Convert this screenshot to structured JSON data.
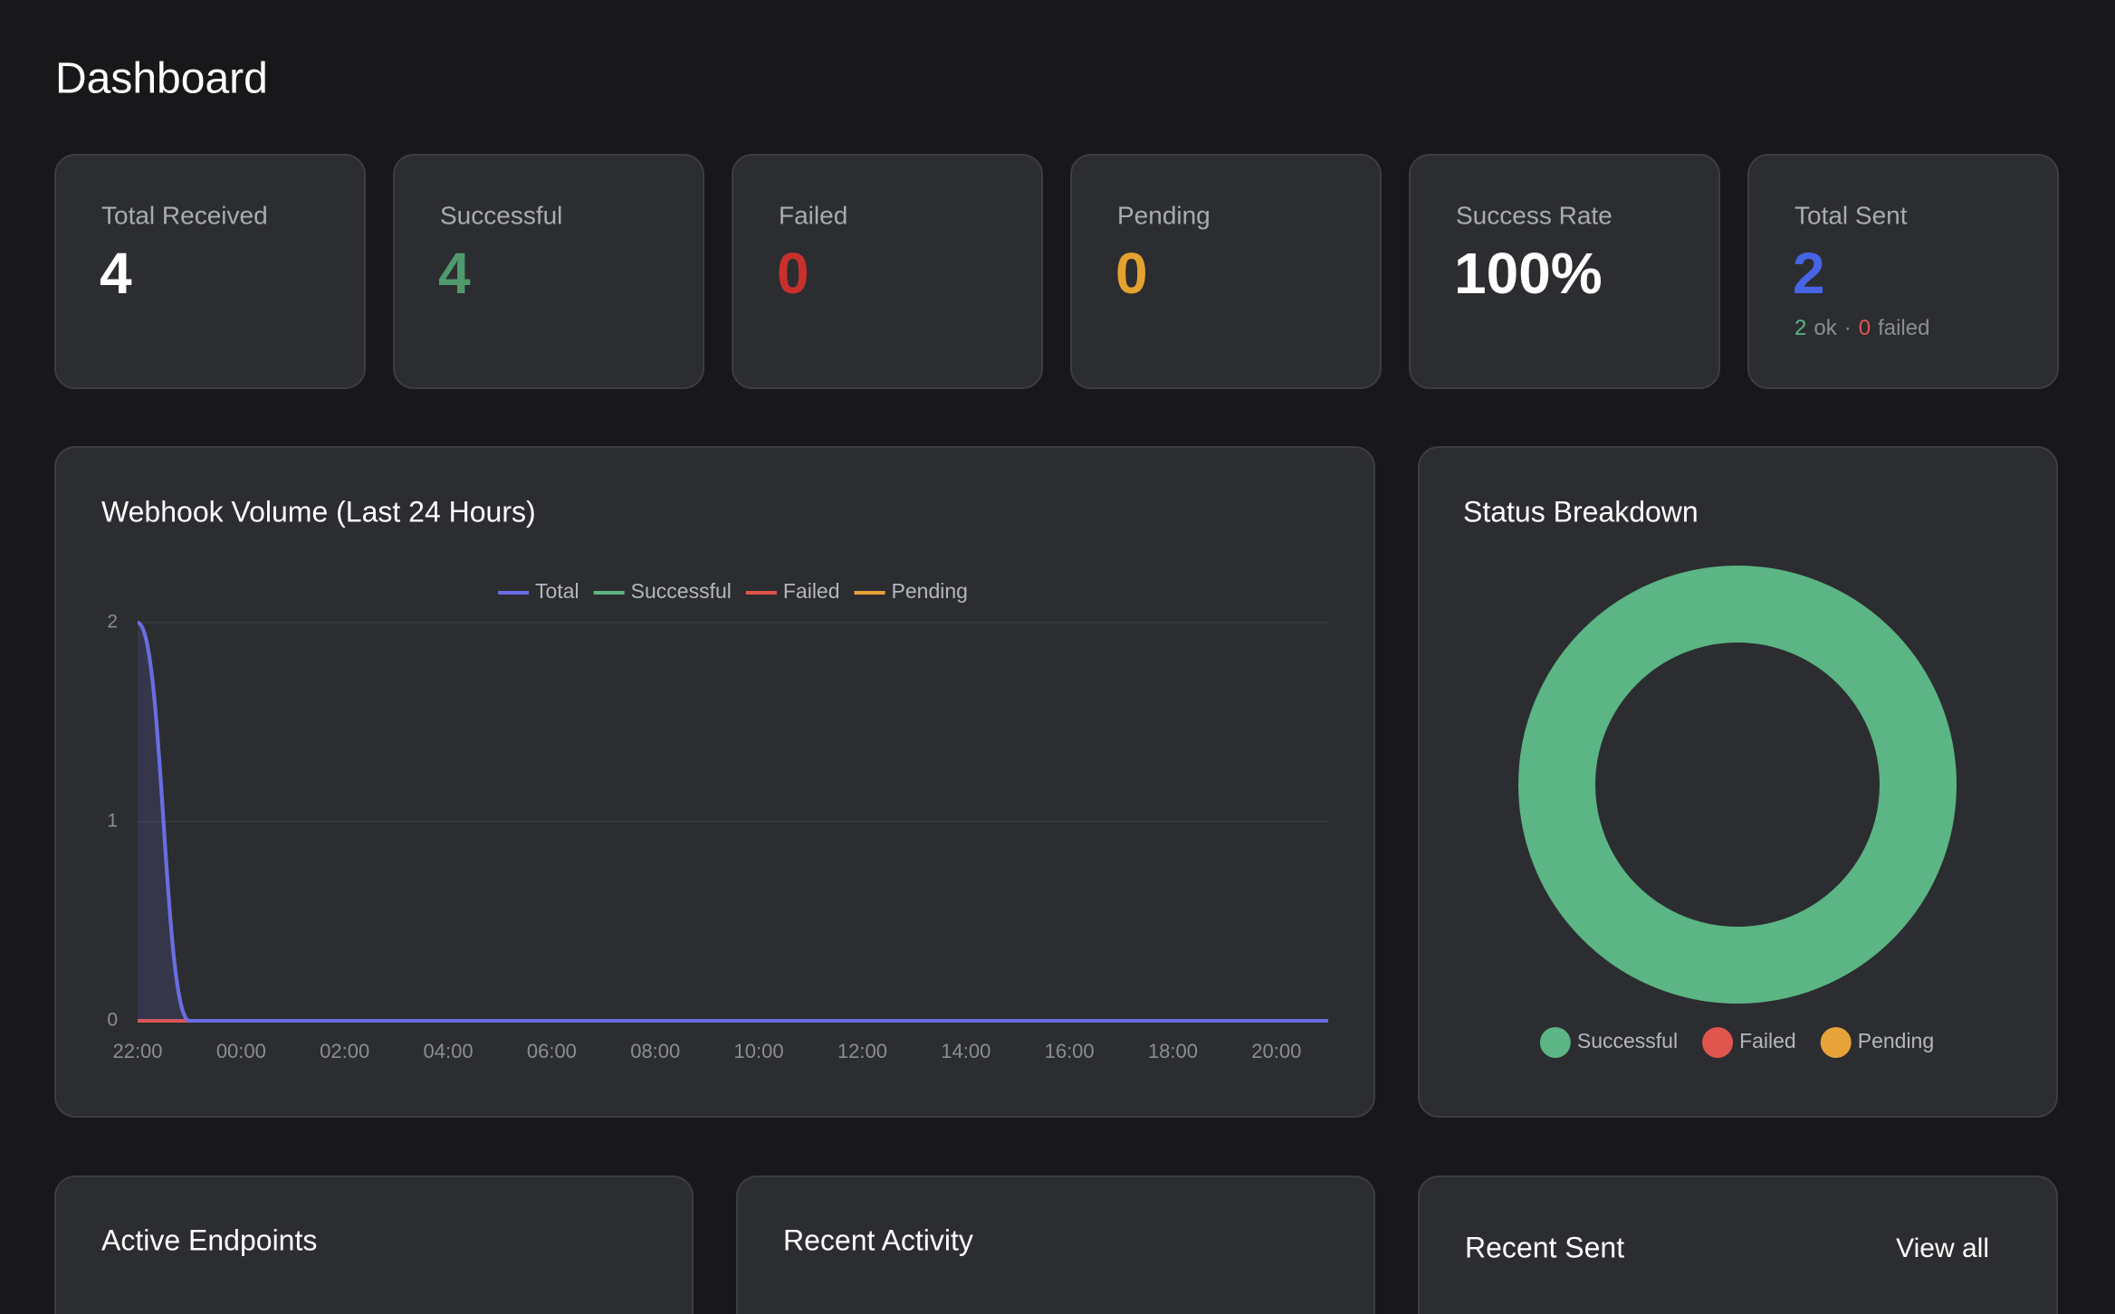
{
  "header": {
    "title": "Dashboard"
  },
  "stats": [
    {
      "label": "Total Received",
      "value": 4,
      "color": "#ffffff"
    },
    {
      "label": "Successful",
      "value": 4,
      "color": "#4e9a6c"
    },
    {
      "label": "Failed",
      "value": 0,
      "color": "#c9302c"
    },
    {
      "label": "Pending",
      "value": 0,
      "color": "#e3a231"
    },
    {
      "label": "Success Rate",
      "value": "100%",
      "color": "#ffffff"
    },
    {
      "label": "Total Sent",
      "value": 2,
      "color": "#4664e6",
      "detail": {
        "ok": 2,
        "ok_text": "ok",
        "separator": "·",
        "failed": 0,
        "failed_text": "failed"
      }
    }
  ],
  "volume_chart": {
    "type": "line",
    "title": "Webhook Volume (Last 24 Hours)",
    "categories": [
      "22:00",
      null,
      "00:00",
      null,
      "02:00",
      null,
      "04:00",
      null,
      "06:00",
      null,
      "08:00",
      null,
      "10:00",
      null,
      "12:00",
      null,
      "14:00",
      null,
      "16:00",
      null,
      "18:00",
      null,
      "20:00",
      null
    ],
    "series": [
      {
        "name": "Total",
        "color": "#6b6be6",
        "values": [
          2,
          0,
          0,
          0,
          0,
          0,
          0,
          0,
          0,
          0,
          0,
          0,
          0,
          0,
          0,
          0,
          0,
          0,
          0,
          0,
          0,
          0,
          0,
          0
        ]
      },
      {
        "name": "Successful",
        "color": "#5bb585",
        "values": [
          2,
          0,
          0,
          0,
          0,
          0,
          0,
          0,
          0,
          0,
          0,
          0,
          0,
          0,
          0,
          0,
          0,
          0,
          0,
          0,
          0,
          0,
          0,
          0
        ]
      },
      {
        "name": "Failed",
        "color": "#e0554e",
        "values": [
          0,
          0,
          0,
          0,
          0,
          0,
          0,
          0,
          0,
          0,
          0,
          0,
          0,
          0,
          0,
          0,
          0,
          0,
          0,
          0,
          0,
          0,
          0,
          0
        ]
      },
      {
        "name": "Pending",
        "color": "#e8a23a",
        "values": [
          0,
          0,
          0,
          0,
          0,
          0,
          0,
          0,
          0,
          0,
          0,
          0,
          0,
          0,
          0,
          0,
          0,
          0,
          0,
          0,
          0,
          0,
          0,
          0
        ]
      }
    ],
    "ylim": [
      0,
      2
    ],
    "yticks": [
      0,
      1,
      2
    ],
    "grid": true
  },
  "status_chart": {
    "type": "pie",
    "title": "Status Breakdown",
    "categories": [
      "Successful",
      "Failed",
      "Pending"
    ],
    "values": [
      4,
      0,
      0
    ],
    "colors": [
      "#5bb585",
      "#e0554e",
      "#e8a23a"
    ]
  },
  "panels": [
    {
      "title": "Active Endpoints"
    },
    {
      "title": "Recent Activity"
    },
    {
      "title": "Recent Sent",
      "action": "View all"
    }
  ]
}
